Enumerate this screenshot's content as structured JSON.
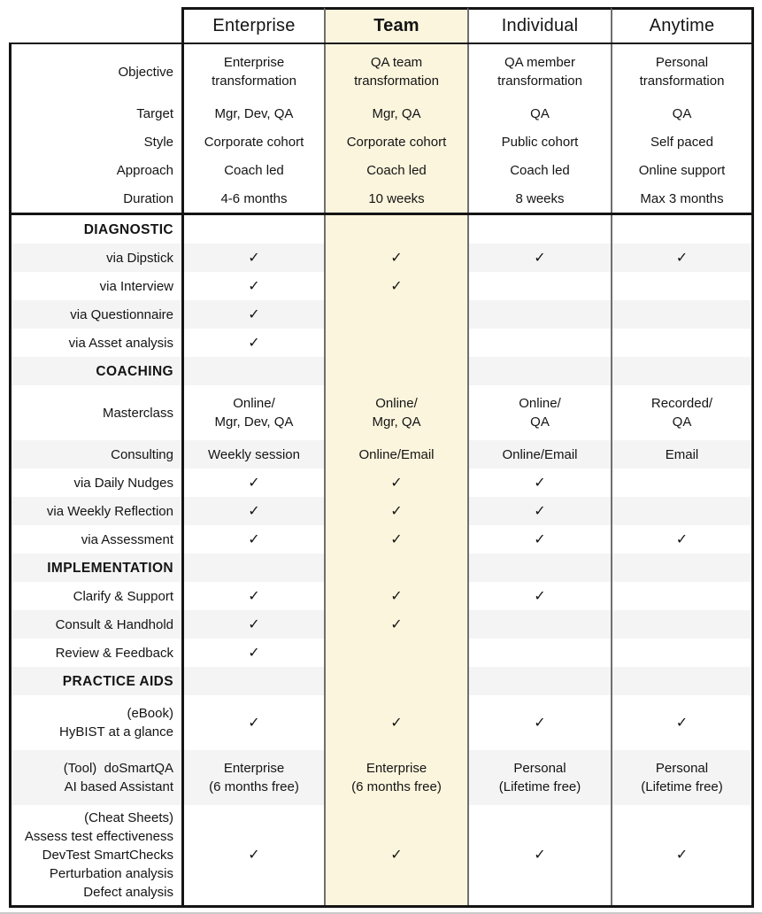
{
  "check_glyph": "✓",
  "colors": {
    "highlight_column_bg": "#FBF5DD",
    "stripe_bg": "#F4F4F4",
    "border_dark": "#141414",
    "border_gray": "#6F6F6F",
    "text": "#141414"
  },
  "columns": [
    "Enterprise",
    "Team",
    "Individual",
    "Anytime"
  ],
  "highlighted_column": "Team",
  "rows": [
    {
      "kind": "spec",
      "label": [
        "Objective"
      ],
      "cells": [
        [
          "Enterprise",
          "transformation"
        ],
        [
          "QA team",
          "transformation"
        ],
        [
          "QA member",
          "transformation"
        ],
        [
          "Personal",
          "transformation"
        ]
      ]
    },
    {
      "kind": "spec",
      "label": [
        "Target"
      ],
      "cells": [
        [
          "Mgr, Dev, QA"
        ],
        [
          "Mgr, QA"
        ],
        [
          "QA"
        ],
        [
          "QA"
        ]
      ]
    },
    {
      "kind": "spec",
      "label": [
        "Style"
      ],
      "cells": [
        [
          "Corporate cohort"
        ],
        [
          "Corporate cohort"
        ],
        [
          "Public cohort"
        ],
        [
          "Self paced"
        ]
      ]
    },
    {
      "kind": "spec",
      "label": [
        "Approach"
      ],
      "cells": [
        [
          "Coach led"
        ],
        [
          "Coach led"
        ],
        [
          "Coach led"
        ],
        [
          "Online support"
        ]
      ]
    },
    {
      "kind": "spec",
      "label": [
        "Duration"
      ],
      "cells": [
        [
          "4-6 months"
        ],
        [
          "10 weeks"
        ],
        [
          "8 weeks"
        ],
        [
          "Max 3 months"
        ]
      ]
    },
    {
      "kind": "section",
      "label": [
        "DIAGNOSTIC"
      ],
      "divider_above": true,
      "cells": [
        [],
        [],
        [],
        []
      ]
    },
    {
      "kind": "feature",
      "label": [
        "via Dipstick"
      ],
      "shaded": true,
      "cells": [
        [
          "✓"
        ],
        [
          "✓"
        ],
        [
          "✓"
        ],
        [
          "✓"
        ]
      ]
    },
    {
      "kind": "feature",
      "label": [
        "via Interview"
      ],
      "cells": [
        [
          "✓"
        ],
        [
          "✓"
        ],
        [],
        []
      ]
    },
    {
      "kind": "feature",
      "label": [
        "via Questionnaire"
      ],
      "shaded": true,
      "cells": [
        [
          "✓"
        ],
        [],
        [],
        []
      ]
    },
    {
      "kind": "feature",
      "label": [
        "via Asset analysis"
      ],
      "cells": [
        [
          "✓"
        ],
        [],
        [],
        []
      ]
    },
    {
      "kind": "section",
      "label": [
        "COACHING"
      ],
      "shaded": true,
      "cells": [
        [],
        [],
        [],
        []
      ]
    },
    {
      "kind": "spec",
      "label": [
        "Masterclass"
      ],
      "cells": [
        [
          "Online/",
          "Mgr, Dev, QA"
        ],
        [
          "Online/",
          "Mgr, QA"
        ],
        [
          "Online/",
          "QA"
        ],
        [
          "Recorded/",
          "QA"
        ]
      ]
    },
    {
      "kind": "spec",
      "label": [
        "Consulting"
      ],
      "shaded": true,
      "cells": [
        [
          "Weekly session"
        ],
        [
          "Online/Email"
        ],
        [
          "Online/Email"
        ],
        [
          "Email"
        ]
      ]
    },
    {
      "kind": "feature",
      "label": [
        "via Daily Nudges"
      ],
      "cells": [
        [
          "✓"
        ],
        [
          "✓"
        ],
        [
          "✓"
        ],
        []
      ]
    },
    {
      "kind": "feature",
      "label": [
        "via Weekly Reflection"
      ],
      "shaded": true,
      "cells": [
        [
          "✓"
        ],
        [
          "✓"
        ],
        [
          "✓"
        ],
        []
      ]
    },
    {
      "kind": "feature",
      "label": [
        "via Assessment"
      ],
      "cells": [
        [
          "✓"
        ],
        [
          "✓"
        ],
        [
          "✓"
        ],
        [
          "✓"
        ]
      ]
    },
    {
      "kind": "section",
      "label": [
        "IMPLEMENTATION"
      ],
      "shaded": true,
      "cells": [
        [],
        [],
        [],
        []
      ]
    },
    {
      "kind": "feature",
      "label": [
        "Clarify & Support"
      ],
      "cells": [
        [
          "✓"
        ],
        [
          "✓"
        ],
        [
          "✓"
        ],
        []
      ]
    },
    {
      "kind": "feature",
      "label": [
        "Consult & Handhold"
      ],
      "shaded": true,
      "cells": [
        [
          "✓"
        ],
        [
          "✓"
        ],
        [],
        []
      ]
    },
    {
      "kind": "feature",
      "label": [
        "Review & Feedback"
      ],
      "cells": [
        [
          "✓"
        ],
        [],
        [],
        []
      ]
    },
    {
      "kind": "section",
      "label": [
        "PRACTICE AIDS"
      ],
      "shaded": true,
      "cells": [
        [],
        [],
        [],
        []
      ]
    },
    {
      "kind": "feature",
      "label": [
        "(eBook)",
        "HyBIST at a glance"
      ],
      "cells": [
        [
          "✓"
        ],
        [
          "✓"
        ],
        [
          "✓"
        ],
        [
          "✓"
        ]
      ]
    },
    {
      "kind": "spec",
      "label": [
        "(Tool)  doSmartQA",
        "AI based Assistant"
      ],
      "shaded": true,
      "cells": [
        [
          "Enterprise",
          "(6 months free)"
        ],
        [
          "Enterprise",
          "(6 months free)"
        ],
        [
          "Personal",
          "(Lifetime free)"
        ],
        [
          "Personal",
          "(Lifetime free)"
        ]
      ]
    },
    {
      "kind": "feature",
      "label": [
        "(Cheat Sheets)",
        "Assess test effectiveness",
        "DevTest SmartChecks",
        "Perturbation analysis",
        "Defect analysis"
      ],
      "cells": [
        [
          "✓"
        ],
        [
          "✓"
        ],
        [
          "✓"
        ],
        [
          "✓"
        ]
      ]
    }
  ]
}
